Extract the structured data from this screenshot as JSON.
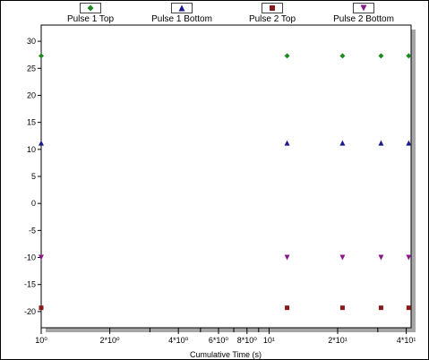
{
  "chart_data": {
    "type": "scatter",
    "title": "",
    "xlabel": "Cumulative Time (s)",
    "ylabel": "",
    "x_scale": "log",
    "xlim": [
      1,
      42
    ],
    "ylim": [
      -23,
      33
    ],
    "x_ticks": [
      {
        "value": 1,
        "label": "10⁰"
      },
      {
        "value": 2,
        "label": "2*10⁰"
      },
      {
        "value": 4,
        "label": "4*10⁰"
      },
      {
        "value": 6,
        "label": "6*10⁰"
      },
      {
        "value": 8,
        "label": "8*10⁰"
      },
      {
        "value": 10,
        "label": "10¹"
      },
      {
        "value": 20,
        "label": "2*10¹"
      },
      {
        "value": 40,
        "label": "4*10¹"
      }
    ],
    "y_ticks": [
      30,
      25,
      20,
      15,
      10,
      5,
      0,
      -5,
      -10,
      -15,
      -20
    ],
    "legend_position": "top",
    "grid": false,
    "series": [
      {
        "name": "Pulse 1 Top",
        "marker": "diamond",
        "color": "#1e8a1e",
        "points": [
          {
            "x": 1,
            "y": 27.3
          },
          {
            "x": 12,
            "y": 27.3
          },
          {
            "x": 21,
            "y": 27.3
          },
          {
            "x": 31,
            "y": 27.3
          },
          {
            "x": 41,
            "y": 27.3
          }
        ]
      },
      {
        "name": "Pulse 1 Bottom",
        "marker": "triangle-up",
        "color": "#1a1a8a",
        "points": [
          {
            "x": 1,
            "y": 11.2
          },
          {
            "x": 12,
            "y": 11.2
          },
          {
            "x": 21,
            "y": 11.2
          },
          {
            "x": 31,
            "y": 11.2
          },
          {
            "x": 41,
            "y": 11.2
          }
        ]
      },
      {
        "name": "Pulse 2 Top",
        "marker": "square",
        "color": "#8a1a1a",
        "points": [
          {
            "x": 1,
            "y": -19.3
          },
          {
            "x": 12,
            "y": -19.3
          },
          {
            "x": 21,
            "y": -19.3
          },
          {
            "x": 31,
            "y": -19.3
          },
          {
            "x": 41,
            "y": -19.3
          }
        ]
      },
      {
        "name": "Pulse 2 Bottom",
        "marker": "triangle-down",
        "color": "#8a1a8a",
        "points": [
          {
            "x": 1,
            "y": -10.0
          },
          {
            "x": 12,
            "y": -10.0
          },
          {
            "x": 21,
            "y": -10.0
          },
          {
            "x": 31,
            "y": -10.0
          },
          {
            "x": 41,
            "y": -10.0
          }
        ]
      }
    ]
  }
}
